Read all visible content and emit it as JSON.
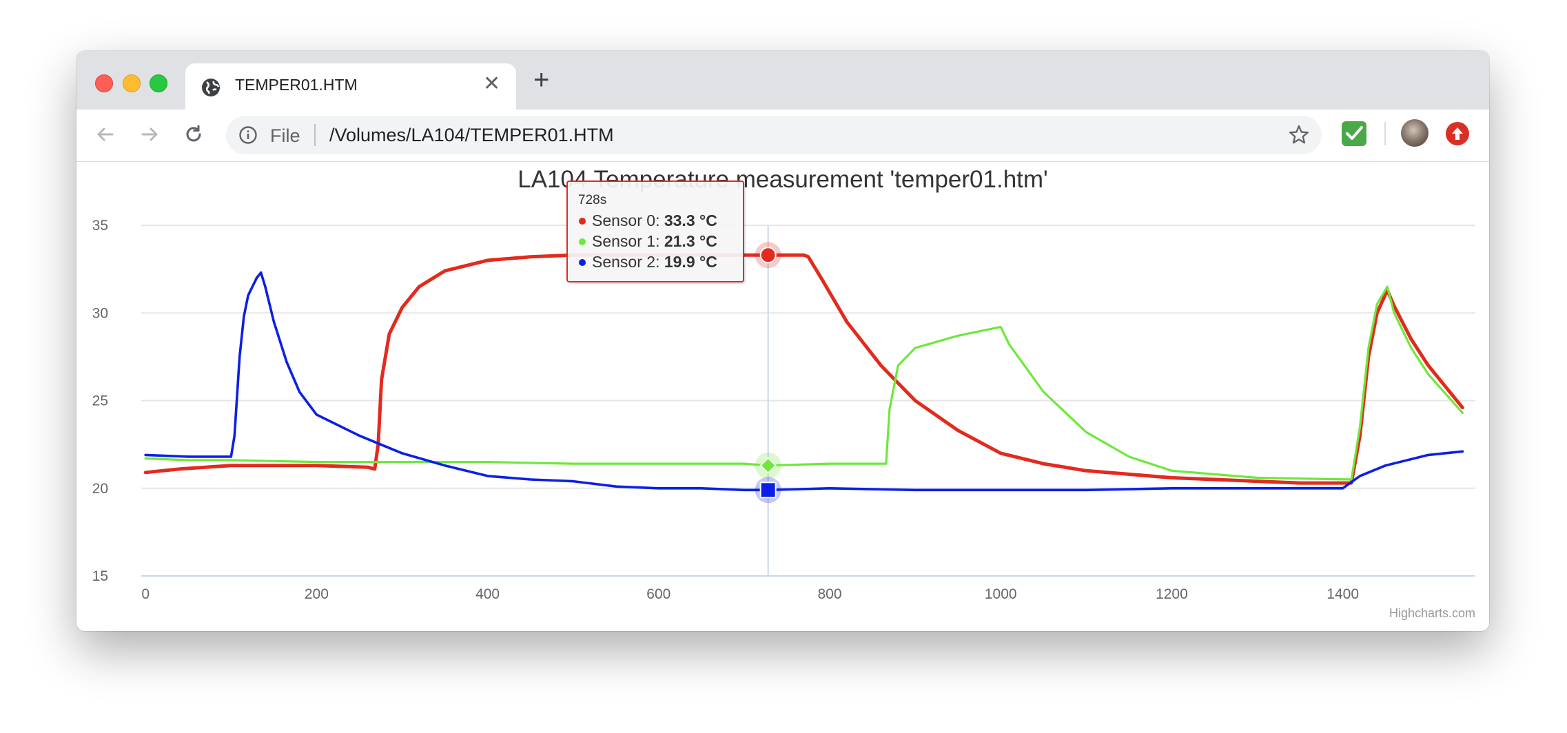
{
  "browser": {
    "tab_title": "TEMPER01.HTM",
    "new_tab_label": "+",
    "tab_close_label": "✕",
    "omnibox_scheme_label": "File",
    "omnibox_url": "/Volumes/LA104/TEMPER01.HTM",
    "icons": [
      "globe-icon",
      "back-icon",
      "forward-icon",
      "reload-icon",
      "info-icon",
      "star-icon",
      "checkmark-extension-icon",
      "avatar",
      "upload-extension-icon"
    ]
  },
  "chart_data": {
    "type": "line",
    "title": "LA104 Temperature measurement 'temper01.htm'",
    "xlabel": "",
    "ylabel": "",
    "xlim": [
      -5,
      1555
    ],
    "ylim": [
      15,
      35
    ],
    "x_ticks": [
      "0",
      "200",
      "400",
      "600",
      "800",
      "1000",
      "1200",
      "1400"
    ],
    "y_ticks": [
      "15",
      "20",
      "25",
      "30",
      "35"
    ],
    "grid": "horizontal",
    "credits": "Highcharts.com",
    "unit": "°C",
    "series": [
      {
        "name": "Sensor 0",
        "color": "#e32a1e",
        "marker": "circle",
        "x": [
          0,
          40,
          100,
          200,
          260,
          268,
          272,
          276,
          285,
          300,
          320,
          350,
          400,
          450,
          500,
          550,
          600,
          650,
          700,
          728,
          770,
          775,
          790,
          820,
          860,
          900,
          950,
          1000,
          1050,
          1100,
          1150,
          1200,
          1250,
          1300,
          1350,
          1410,
          1420,
          1430,
          1440,
          1452,
          1460,
          1480,
          1500,
          1540
        ],
        "y": [
          20.9,
          21.1,
          21.3,
          21.3,
          21.2,
          21.1,
          22.5,
          26.2,
          28.8,
          30.3,
          31.5,
          32.4,
          33.0,
          33.2,
          33.3,
          33.3,
          33.3,
          33.3,
          33.3,
          33.3,
          33.3,
          33.2,
          32.0,
          29.5,
          27.0,
          25.0,
          23.3,
          22.0,
          21.4,
          21.0,
          20.8,
          20.6,
          20.5,
          20.4,
          20.3,
          20.3,
          23.0,
          27.5,
          30.0,
          31.3,
          30.4,
          28.5,
          27.0,
          24.6
        ]
      },
      {
        "name": "Sensor 1",
        "color": "#6ee83a",
        "marker": "diamond",
        "x": [
          0,
          50,
          100,
          200,
          270,
          300,
          400,
          500,
          600,
          700,
          728,
          800,
          866,
          870,
          880,
          900,
          950,
          1000,
          1010,
          1050,
          1100,
          1150,
          1200,
          1300,
          1410,
          1420,
          1430,
          1440,
          1452,
          1460,
          1480,
          1500,
          1540
        ],
        "y": [
          21.7,
          21.6,
          21.6,
          21.5,
          21.5,
          21.5,
          21.5,
          21.4,
          21.4,
          21.4,
          21.3,
          21.4,
          21.4,
          24.5,
          27.0,
          28.0,
          28.7,
          29.2,
          28.2,
          25.5,
          23.2,
          21.8,
          21.0,
          20.6,
          20.5,
          23.5,
          28.0,
          30.5,
          31.5,
          30.0,
          28.0,
          26.5,
          24.3
        ]
      },
      {
        "name": "Sensor 2",
        "color": "#0b1fe8",
        "marker": "square",
        "x": [
          0,
          50,
          100,
          104,
          110,
          115,
          120,
          130,
          135,
          140,
          150,
          165,
          180,
          200,
          250,
          300,
          350,
          400,
          450,
          500,
          550,
          600,
          650,
          700,
          728,
          800,
          900,
          1000,
          1100,
          1200,
          1300,
          1400,
          1420,
          1450,
          1500,
          1540
        ],
        "y": [
          21.9,
          21.8,
          21.8,
          23.0,
          27.5,
          29.8,
          31.0,
          32.0,
          32.3,
          31.5,
          29.5,
          27.2,
          25.5,
          24.2,
          23.0,
          22.0,
          21.3,
          20.7,
          20.5,
          20.4,
          20.1,
          20.0,
          20.0,
          19.9,
          19.9,
          20.0,
          19.9,
          19.9,
          19.9,
          20.0,
          20.0,
          20.0,
          20.7,
          21.3,
          21.9,
          22.1
        ]
      }
    ],
    "tooltip": {
      "header": "728s",
      "x": 728,
      "rows": [
        {
          "name": "Sensor 0",
          "value": "33.3 °C",
          "y": 33.3
        },
        {
          "name": "Sensor 1",
          "value": "21.3 °C",
          "y": 21.3
        },
        {
          "name": "Sensor 2",
          "value": "19.9 °C",
          "y": 19.9
        }
      ]
    }
  }
}
